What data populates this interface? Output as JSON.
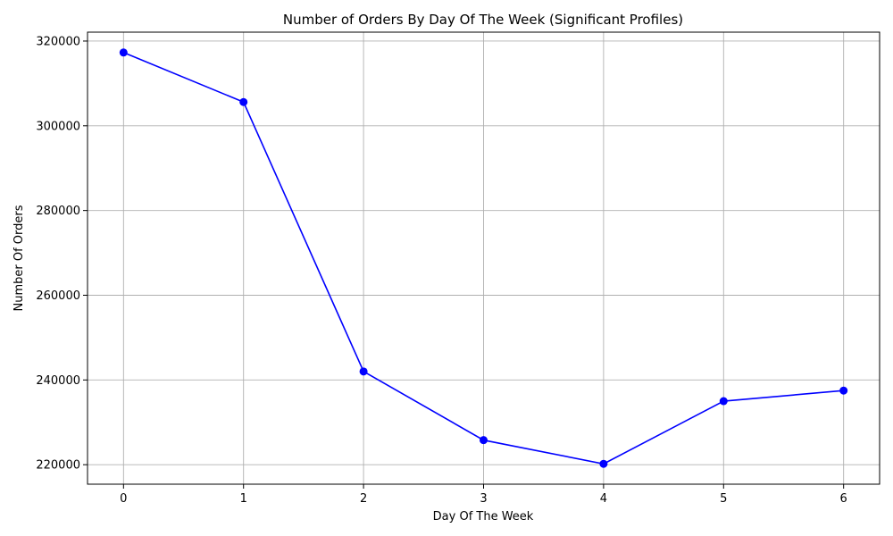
{
  "chart_data": {
    "type": "line",
    "title": "Number of Orders By Day Of The Week (Significant Profiles)",
    "xlabel": "Day Of The Week",
    "ylabel": "Number Of Orders",
    "x": [
      0,
      1,
      2,
      3,
      4,
      5,
      6
    ],
    "series": [
      {
        "values": [
          317300,
          305600,
          242000,
          225800,
          220200,
          235000,
          237500
        ],
        "color": "#0000ff",
        "marker": "circle"
      }
    ],
    "xticks": [
      "0",
      "1",
      "2",
      "3",
      "4",
      "5",
      "6"
    ],
    "yticks": [
      "220000",
      "240000",
      "260000",
      "280000",
      "300000",
      "320000"
    ],
    "xlim": [
      -0.3,
      6.3
    ],
    "ylim": [
      215400,
      322100
    ],
    "grid": true
  }
}
